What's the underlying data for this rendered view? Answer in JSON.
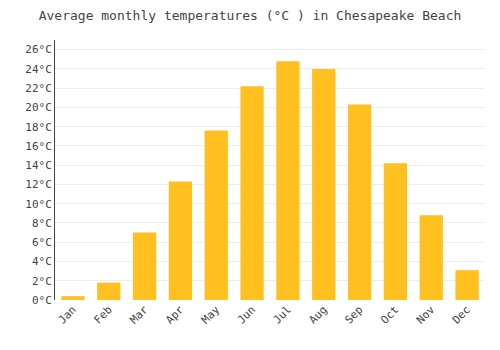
{
  "chart_data": {
    "type": "bar",
    "title": "Average monthly temperatures (°C ) in Chesapeake Beach",
    "categories": [
      "Jan",
      "Feb",
      "Mar",
      "Apr",
      "May",
      "Jun",
      "Jul",
      "Aug",
      "Sep",
      "Oct",
      "Nov",
      "Dec"
    ],
    "values": [
      0.4,
      1.8,
      7.0,
      12.3,
      17.6,
      22.2,
      24.8,
      24.0,
      20.3,
      14.2,
      8.8,
      3.1
    ],
    "color": "#FFC020",
    "ylim": [
      0,
      27
    ],
    "yticks": [
      {
        "value": 0,
        "label": "0°C"
      },
      {
        "value": 2,
        "label": "2°C"
      },
      {
        "value": 4,
        "label": "4°C"
      },
      {
        "value": 6,
        "label": "6°C"
      },
      {
        "value": 8,
        "label": "8°C"
      },
      {
        "value": 10,
        "label": "10°C"
      },
      {
        "value": 12,
        "label": "12°C"
      },
      {
        "value": 14,
        "label": "14°C"
      },
      {
        "value": 16,
        "label": "16°C"
      },
      {
        "value": 18,
        "label": "18°C"
      },
      {
        "value": 20,
        "label": "20°C"
      },
      {
        "value": 22,
        "label": "22°C"
      },
      {
        "value": 24,
        "label": "24°C"
      },
      {
        "value": 26,
        "label": "26°C"
      }
    ],
    "grid": true
  }
}
